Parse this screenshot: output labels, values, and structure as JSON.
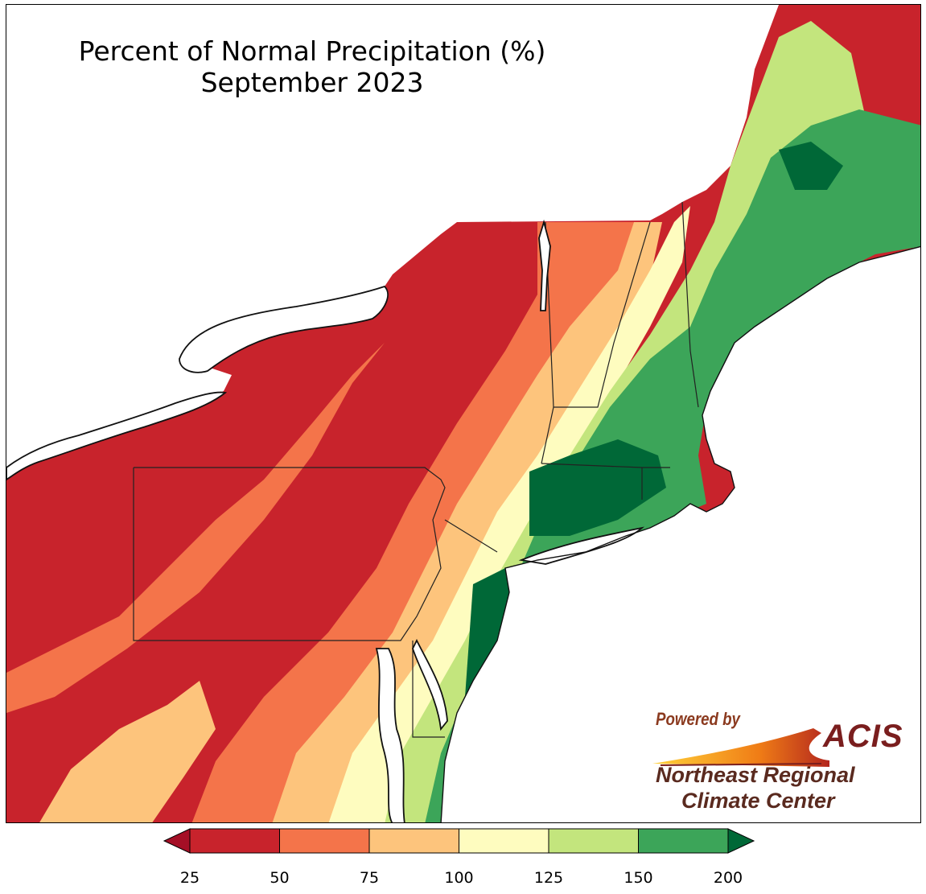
{
  "map": {
    "title_line1": "Percent of Normal Precipitation (%)",
    "title_line2": "September 2023"
  },
  "credit": {
    "powered_by": "Powered by",
    "logo_text": "ACIS",
    "org_line1": "Northeast Regional",
    "org_line2": "Climate Center"
  },
  "legend": {
    "ticks": [
      "25",
      "50",
      "75",
      "100",
      "125",
      "150",
      "200"
    ],
    "bins": [
      {
        "from": 25,
        "to": 50,
        "color": "#c8232c"
      },
      {
        "from": 50,
        "to": 75,
        "color": "#f4744a"
      },
      {
        "from": 75,
        "to": 100,
        "color": "#fdc47c"
      },
      {
        "from": 100,
        "to": 125,
        "color": "#fefcbf"
      },
      {
        "from": 125,
        "to": 150,
        "color": "#c3e57d"
      },
      {
        "from": 150,
        "to": 200,
        "color": "#3ca559"
      }
    ],
    "below_color": "#a50f26",
    "above_color": "#006837"
  },
  "colors": {
    "very_dry": "#c8232c",
    "dry": "#f4744a",
    "slightly_dry": "#fdc47c",
    "normal": "#fefcbf",
    "slightly_wet": "#c3e57d",
    "wet": "#3ca559",
    "very_wet": "#006837",
    "water": "#ffffff"
  }
}
